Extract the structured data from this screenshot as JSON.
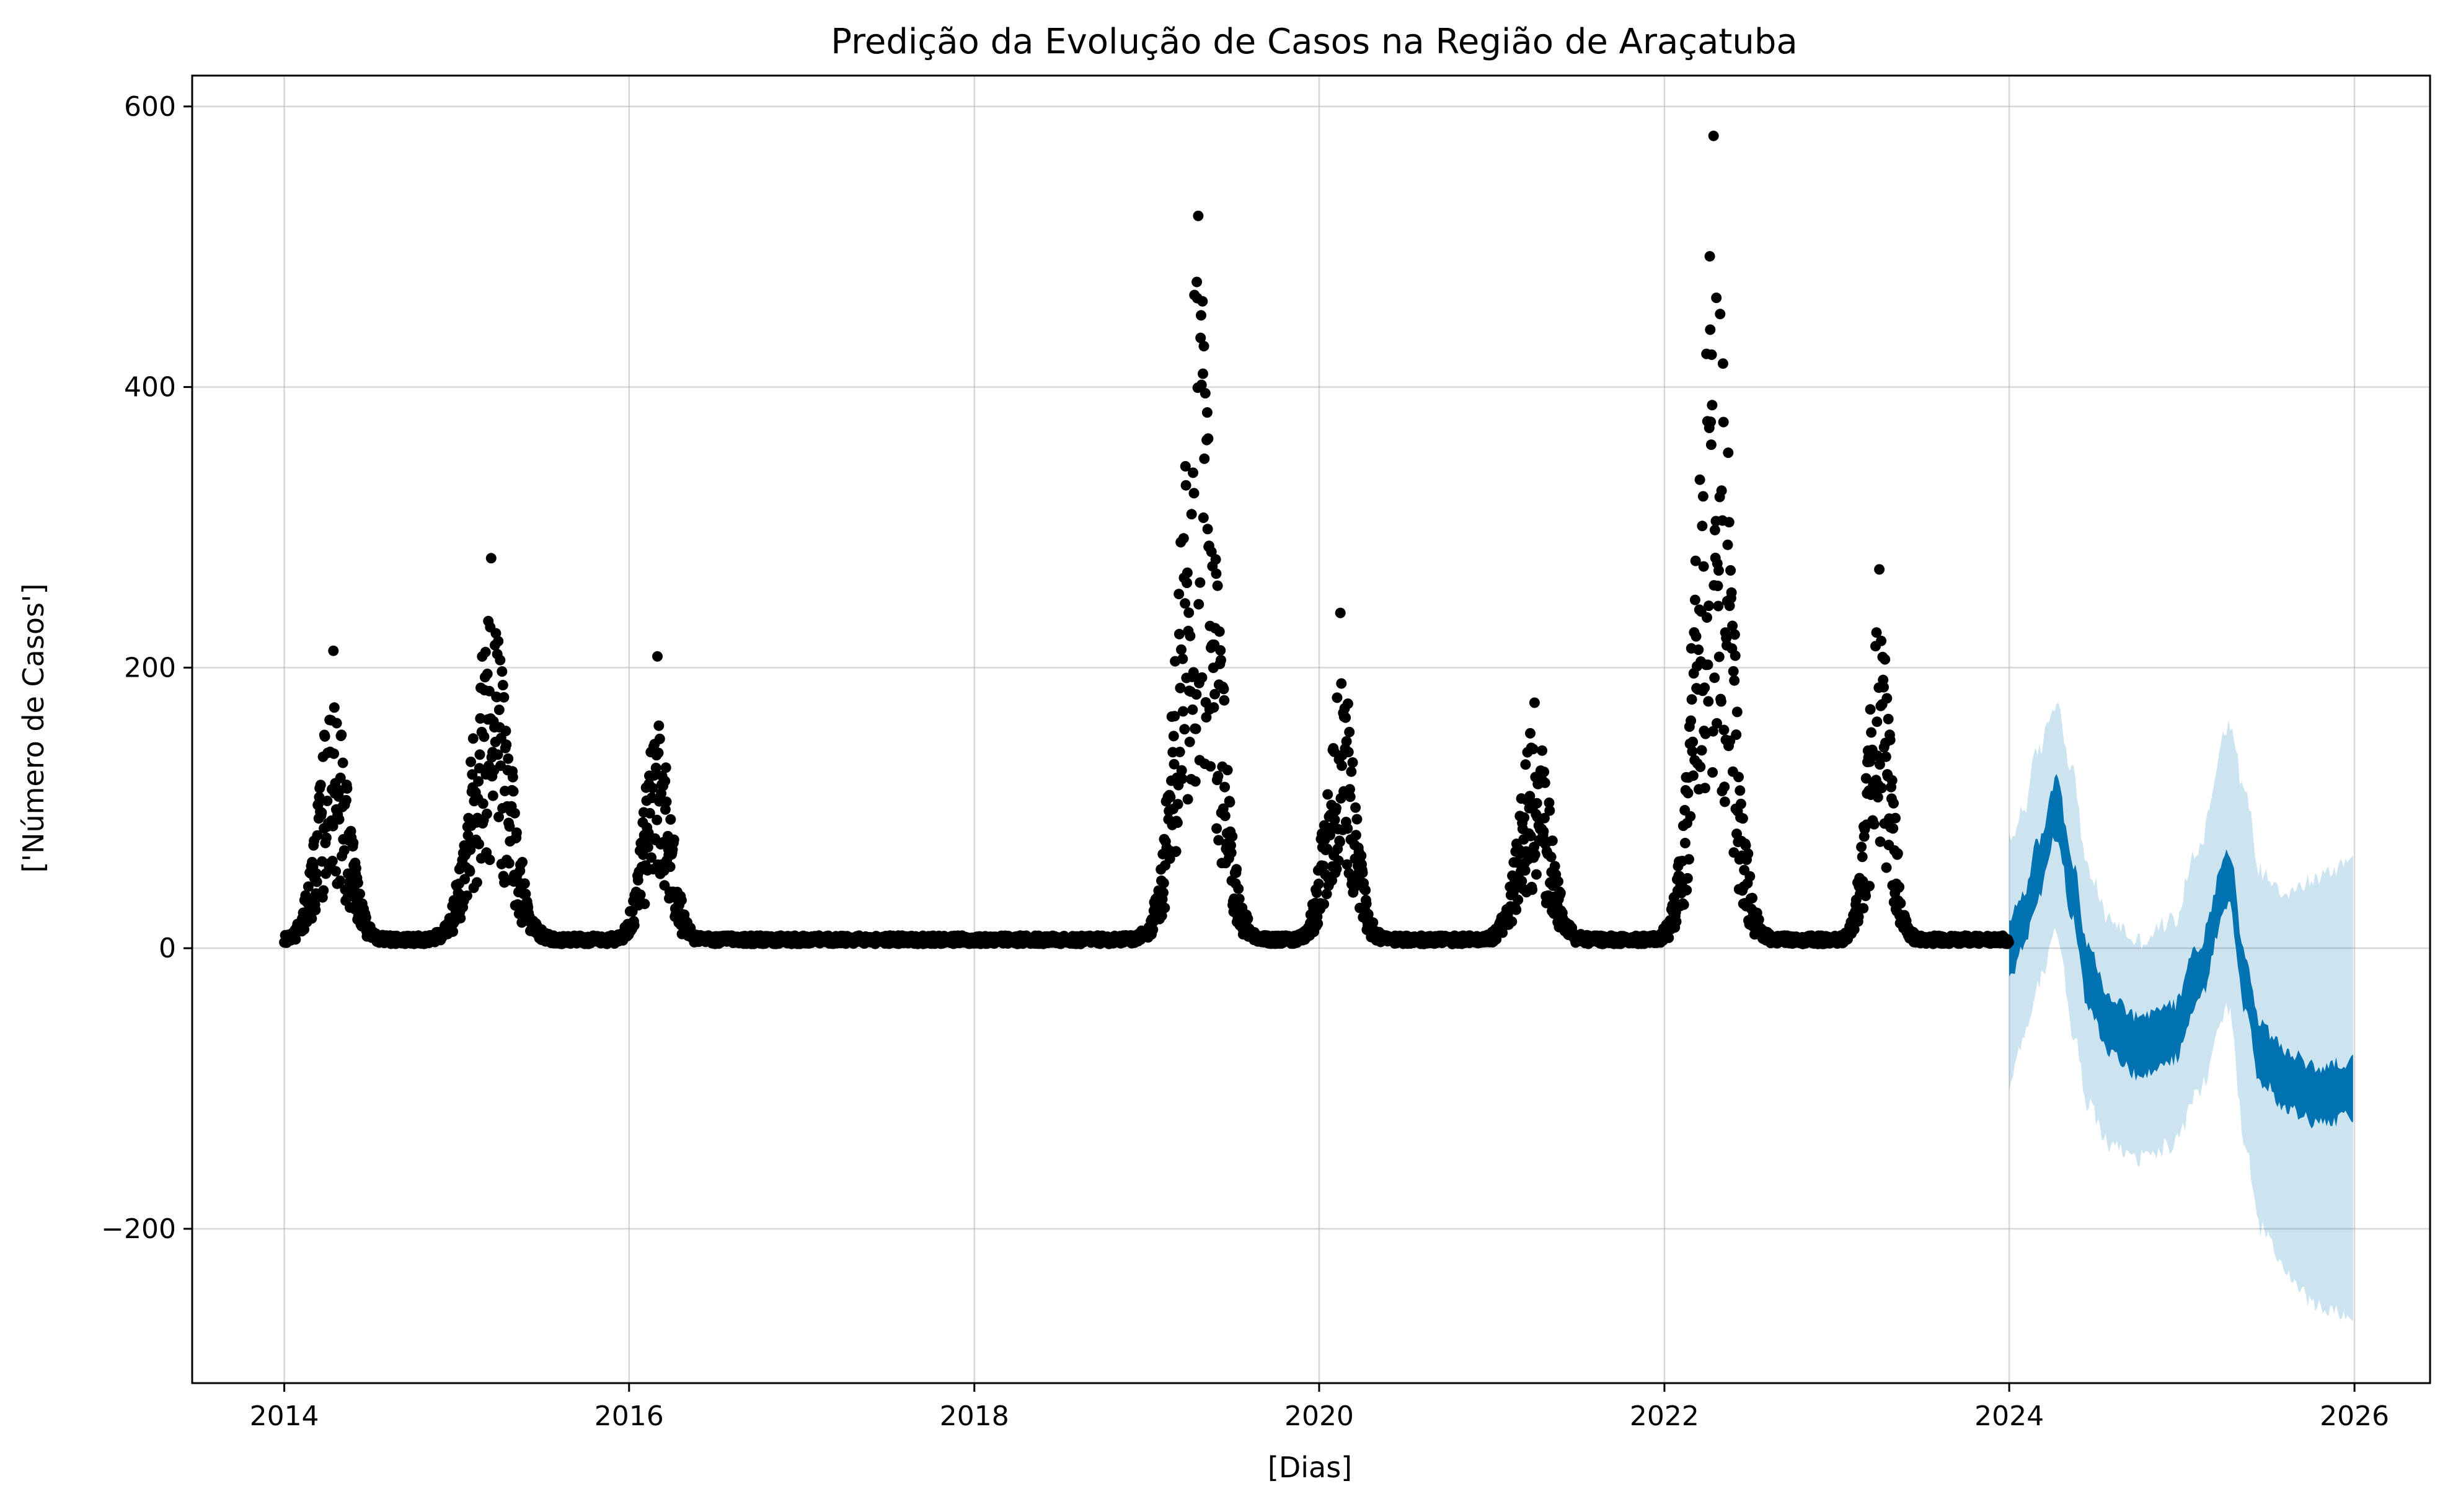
{
  "chart_data": {
    "type": "scatter",
    "title": "Predição da Evolução de Casos na Região de Araçatuba",
    "xlabel": "[Dias]",
    "ylabel": "['Número de Casos']",
    "x_ticks": [
      "2014",
      "2016",
      "2018",
      "2020",
      "2022",
      "2024",
      "2026"
    ],
    "y_ticks": [
      "−200",
      "0",
      "200",
      "400",
      "600"
    ],
    "y_tick_values": [
      -200,
      0,
      200,
      400,
      600
    ],
    "xlim": [
      "2013-06-20",
      "2026-06-10"
    ],
    "ylim": [
      -310,
      622
    ],
    "grid": true,
    "colors": {
      "observed": "#000000",
      "forecast": "#0072b2",
      "uncertainty": "#0072b2"
    },
    "observed": {
      "name": "",
      "x_range": [
        "2014-01-01",
        "2023-12-31"
      ],
      "peaks": [
        {
          "date": "2014-04-15",
          "max": 212,
          "typical": 115,
          "width_days": 45
        },
        {
          "date": "2015-03-15",
          "max": 278,
          "typical": 155,
          "width_days": 55
        },
        {
          "date": "2016-03-01",
          "max": 208,
          "typical": 105,
          "width_days": 40
        },
        {
          "date": "2019-04-20",
          "max": 522,
          "typical": 320,
          "width_days": 55
        },
        {
          "date": "2020-02-15",
          "max": 239,
          "typical": 135,
          "width_days": 40
        },
        {
          "date": "2021-04-01",
          "max": 175,
          "typical": 105,
          "width_days": 45
        },
        {
          "date": "2022-04-15",
          "max": 579,
          "typical": 340,
          "width_days": 50
        },
        {
          "date": "2023-04-01",
          "max": 270,
          "typical": 150,
          "width_days": 35
        }
      ],
      "baseline": 3
    },
    "forecast": {
      "name": "",
      "points": [
        {
          "x": "2024-01-01",
          "yhat": 0,
          "lower": -95,
          "upper": 75
        },
        {
          "x": "2024-02-01",
          "yhat": 20,
          "lower": -65,
          "upper": 100
        },
        {
          "x": "2024-03-01",
          "yhat": 55,
          "lower": -25,
          "upper": 140
        },
        {
          "x": "2024-04-10",
          "yhat": 100,
          "lower": 10,
          "upper": 175
        },
        {
          "x": "2024-05-15",
          "yhat": 40,
          "lower": -60,
          "upper": 125
        },
        {
          "x": "2024-06-15",
          "yhat": -20,
          "lower": -110,
          "upper": 55
        },
        {
          "x": "2024-08-01",
          "yhat": -55,
          "lower": -140,
          "upper": 20
        },
        {
          "x": "2024-10-01",
          "yhat": -70,
          "lower": -150,
          "upper": 5
        },
        {
          "x": "2024-12-15",
          "yhat": -60,
          "lower": -140,
          "upper": 20
        },
        {
          "x": "2025-02-01",
          "yhat": -20,
          "lower": -105,
          "upper": 70
        },
        {
          "x": "2025-04-10",
          "yhat": 50,
          "lower": -45,
          "upper": 160
        },
        {
          "x": "2025-05-15",
          "yhat": -25,
          "lower": -140,
          "upper": 110
        },
        {
          "x": "2025-06-15",
          "yhat": -75,
          "lower": -200,
          "upper": 55
        },
        {
          "x": "2025-08-15",
          "yhat": -95,
          "lower": -235,
          "upper": 40
        },
        {
          "x": "2025-10-15",
          "yhat": -105,
          "lower": -255,
          "upper": 50
        },
        {
          "x": "2026-01-01",
          "yhat": -100,
          "lower": -265,
          "upper": 65
        }
      ]
    }
  }
}
